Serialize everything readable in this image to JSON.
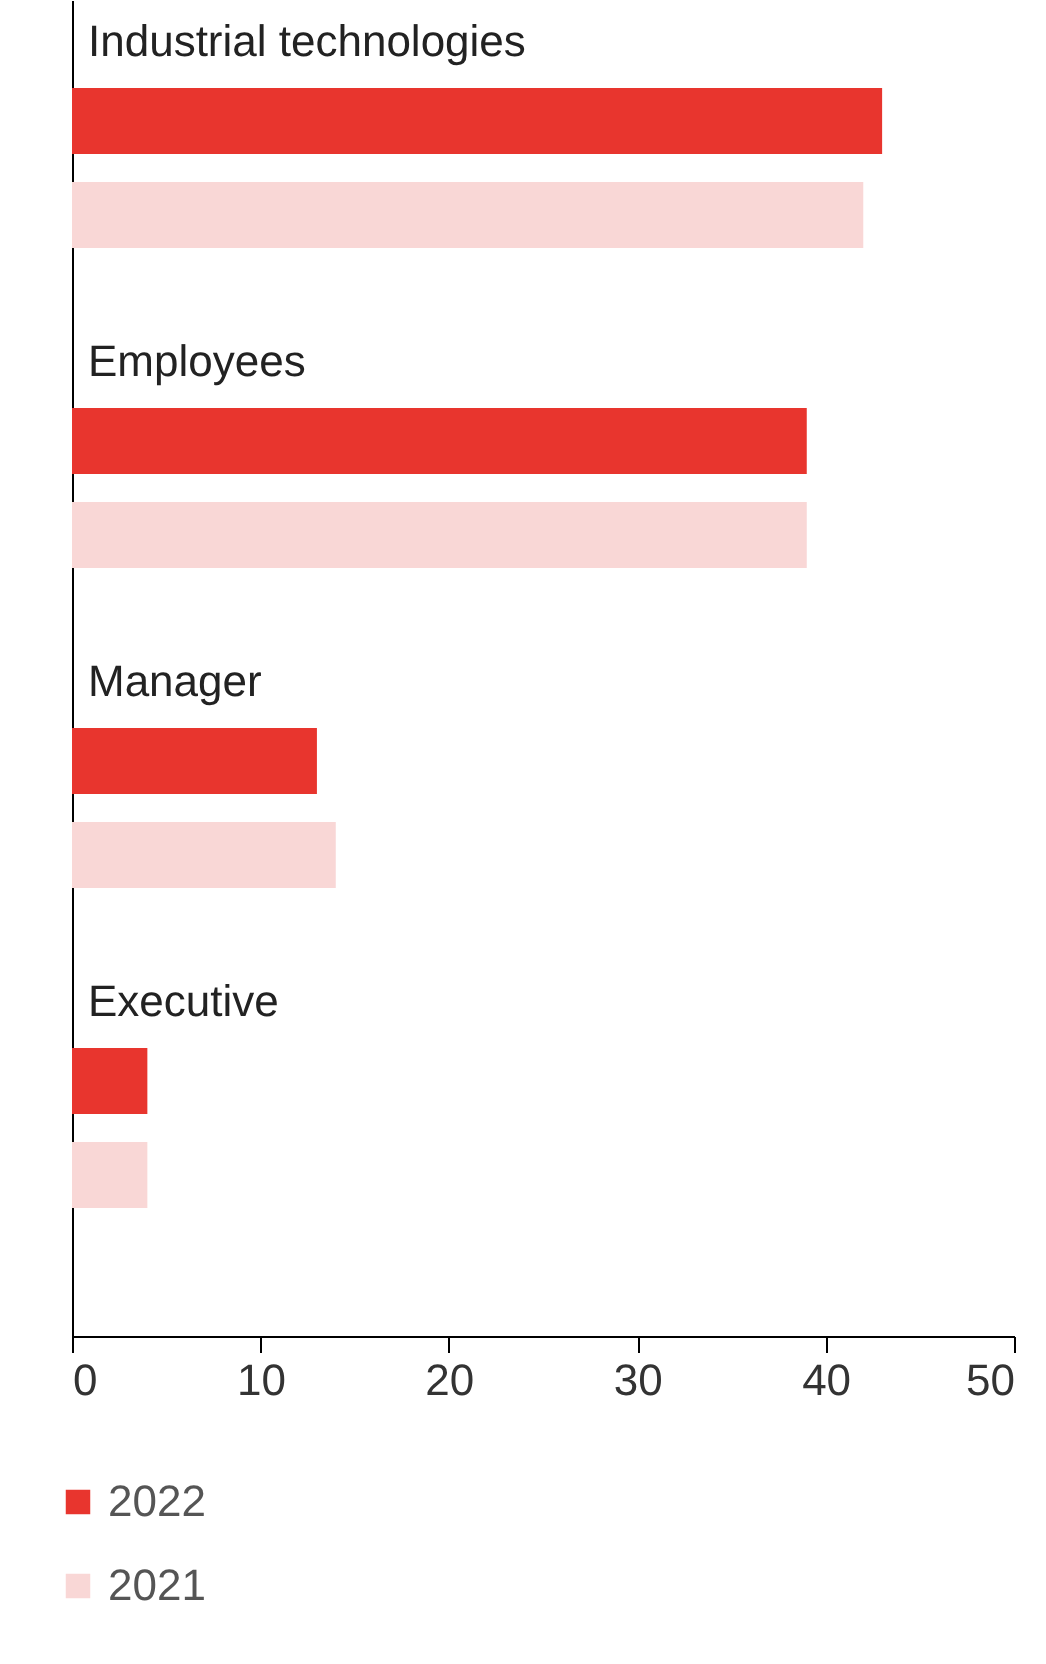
{
  "chart_data": {
    "type": "bar",
    "orientation": "horizontal",
    "categories": [
      "Industrial technologies",
      "Employees",
      "Manager",
      "Executive"
    ],
    "series": [
      {
        "name": "2022",
        "color": "#e8352e",
        "values": [
          43,
          39,
          13,
          4
        ]
      },
      {
        "name": "2021",
        "color": "#f9d7d6",
        "values": [
          42,
          39,
          14,
          4
        ]
      }
    ],
    "xlim": [
      0,
      50
    ],
    "xticks": [
      0,
      10,
      20,
      30,
      40,
      50
    ],
    "grid": false,
    "legend": "bottom left"
  }
}
